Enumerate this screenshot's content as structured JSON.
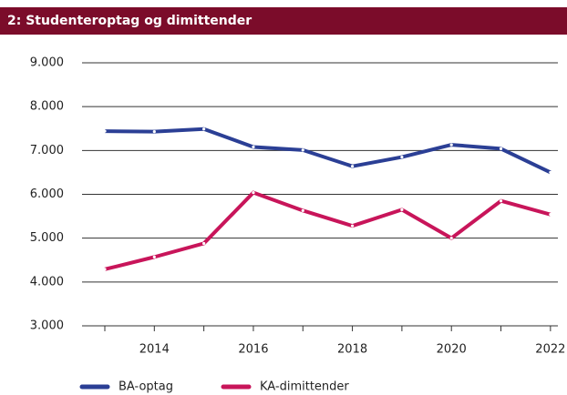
{
  "chart_data": {
    "type": "line",
    "title": "2: Studenteroptag og dimittender",
    "x": [
      2013,
      2014,
      2015,
      2016,
      2017,
      2018,
      2019,
      2020,
      2021,
      2022
    ],
    "series": [
      {
        "name": "BA-optag",
        "color": "#2b3f95",
        "values": [
          7440,
          7430,
          7490,
          7080,
          7010,
          6640,
          6850,
          7130,
          7040,
          6500
        ]
      },
      {
        "name": "KA-dimittender",
        "color": "#c8155a",
        "values": [
          4290,
          4570,
          4880,
          6040,
          5630,
          5280,
          5650,
          5000,
          5850,
          5540
        ]
      }
    ],
    "xlim": [
      2012.54,
      2022.15
    ],
    "xticks": [
      2014,
      2016,
      2018,
      2020,
      2022
    ],
    "ylim": [
      3000,
      9000
    ],
    "yticks": [
      {
        "value": 3000,
        "label": "3.000"
      },
      {
        "value": 4000,
        "label": "4.000"
      },
      {
        "value": 5000,
        "label": "5.000"
      },
      {
        "value": 6000,
        "label": "6.000"
      },
      {
        "value": 7000,
        "label": "7.000"
      },
      {
        "value": 8000,
        "label": "8.000"
      },
      {
        "value": 9000,
        "label": "9.000"
      }
    ],
    "grid": true,
    "legend": "bottom"
  }
}
